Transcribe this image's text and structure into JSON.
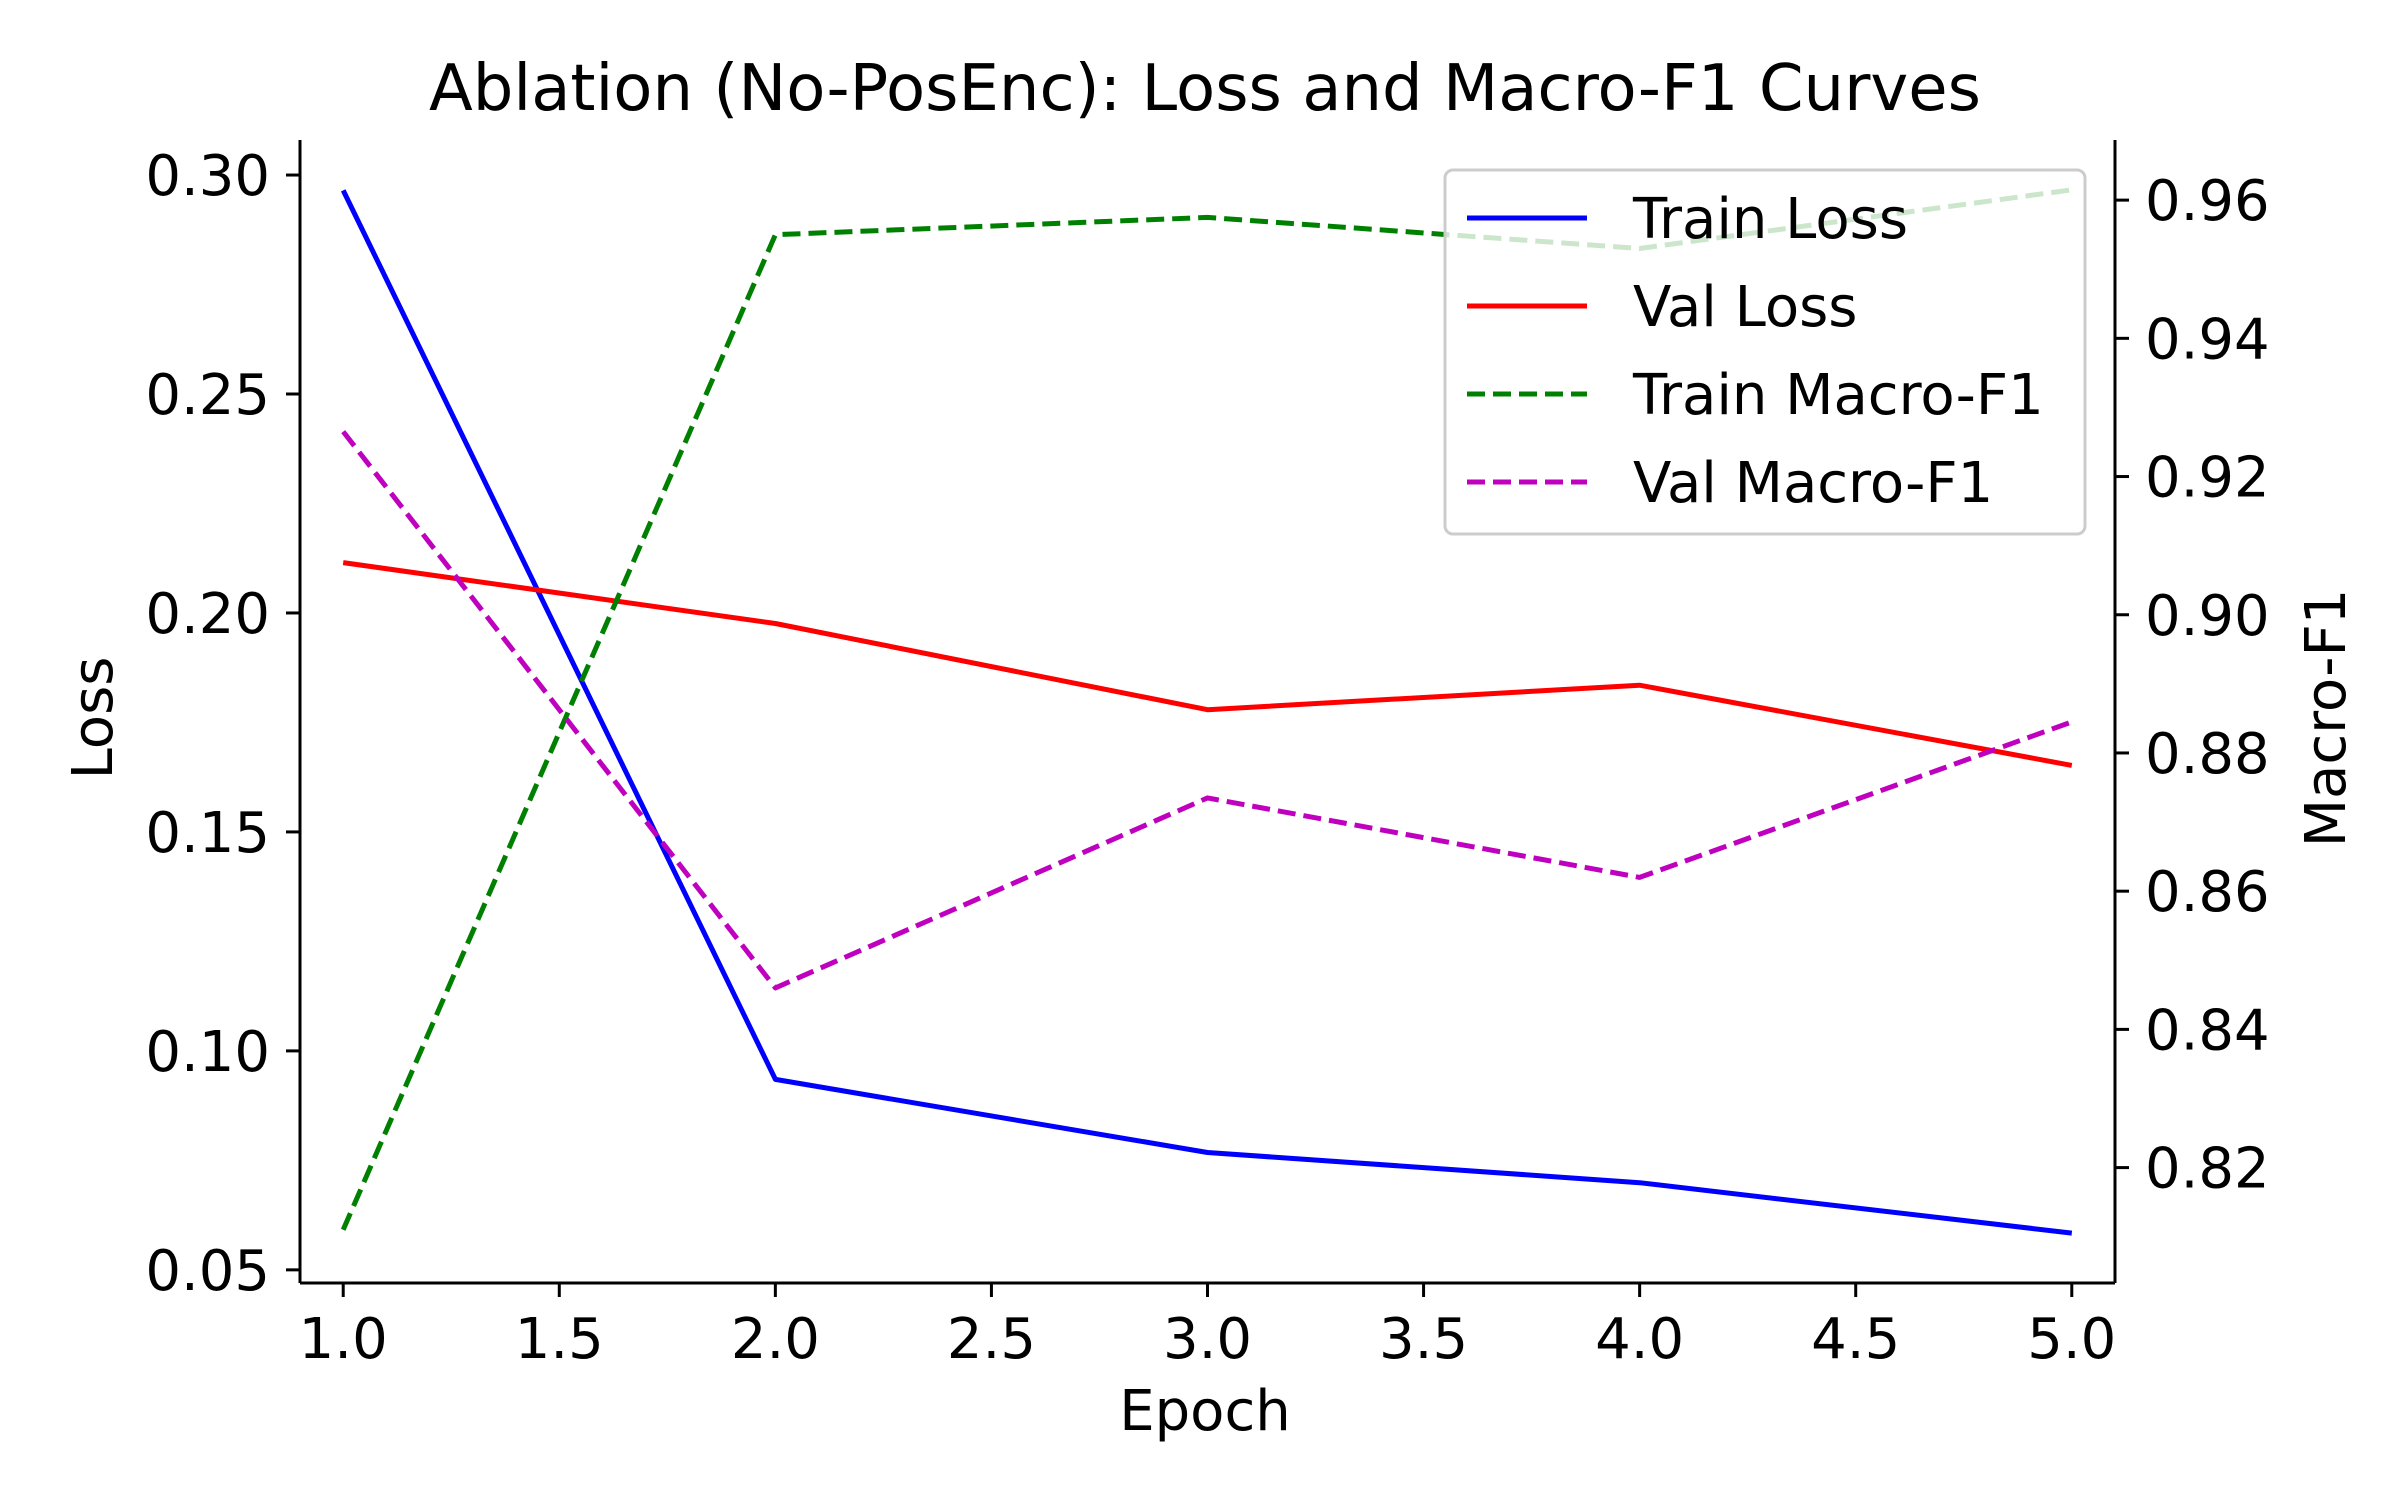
{
  "chart_data": {
    "type": "line",
    "title": "Ablation (No-PosEnc): Loss and Macro-F1 Curves",
    "xlabel": "Epoch",
    "ylabel": "Loss",
    "y2label": "Macro-F1",
    "x": [
      1,
      2,
      3,
      4,
      5
    ],
    "xlim": [
      0.9,
      5.1
    ],
    "ylim": [
      0.047,
      0.308
    ],
    "y2lim": [
      0.8033,
      0.9687
    ],
    "x_ticks": [
      "1.0",
      "1.5",
      "2.0",
      "2.5",
      "3.0",
      "3.5",
      "4.0",
      "4.5",
      "5.0"
    ],
    "y_ticks": [
      "0.05",
      "0.10",
      "0.15",
      "0.20",
      "0.25",
      "0.30"
    ],
    "y2_ticks": [
      "0.82",
      "0.84",
      "0.86",
      "0.88",
      "0.90",
      "0.92",
      "0.94",
      "0.96"
    ],
    "grid": false,
    "legend_position": "top-right",
    "series": [
      {
        "name": "Train Loss",
        "axis": "left",
        "style": "solid",
        "color": "#0000ff",
        "values": [
          0.2965,
          0.0935,
          0.0768,
          0.0699,
          0.0584
        ]
      },
      {
        "name": "Val Loss",
        "axis": "left",
        "style": "solid",
        "color": "#ff0000",
        "values": [
          0.2115,
          0.1976,
          0.1779,
          0.1835,
          0.1652
        ]
      },
      {
        "name": "Train Macro-F1",
        "axis": "right",
        "style": "dashed",
        "color": "#008000",
        "values": [
          0.811,
          0.955,
          0.9575,
          0.953,
          0.9615
        ]
      },
      {
        "name": "Val Macro-F1",
        "axis": "right",
        "style": "dashed",
        "color": "#bf00bf",
        "values": [
          0.9265,
          0.846,
          0.8735,
          0.862,
          0.8845
        ]
      }
    ]
  }
}
